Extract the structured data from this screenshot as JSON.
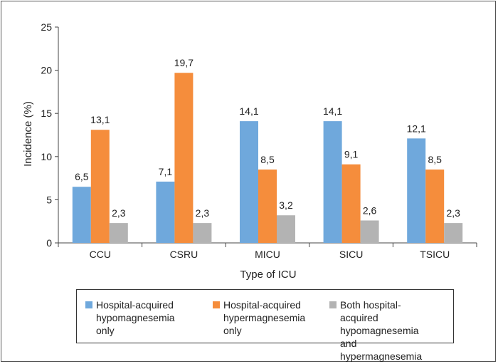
{
  "chart_data": {
    "type": "bar",
    "categories": [
      "CCU",
      "CSRU",
      "MICU",
      "SICU",
      "TSICU"
    ],
    "series": [
      {
        "name": "Hospital-acquired\nhypomagnesemia only",
        "color": "#6fa8dc",
        "values": [
          6.5,
          7.1,
          14.1,
          14.1,
          12.1
        ],
        "labels": [
          "6,5",
          "7,1",
          "14,1",
          "14,1",
          "12,1"
        ]
      },
      {
        "name": "Hospital-acquired\nhypermagnesemia only",
        "color": "#f58d3c",
        "values": [
          13.1,
          19.7,
          8.5,
          9.1,
          8.5
        ],
        "labels": [
          "13,1",
          "19,7",
          "8,5",
          "9,1",
          "8,5"
        ]
      },
      {
        "name": "Both hospital-acquired\nhypomagnesemia and\nhypermagnesemia",
        "color": "#b3b3b3",
        "values": [
          2.3,
          2.3,
          3.2,
          2.6,
          2.3
        ],
        "labels": [
          "2,3",
          "2,3",
          "3,2",
          "2,6",
          "2,3"
        ]
      }
    ],
    "xlabel": "Type of ICU",
    "ylabel": "Incidence (%)",
    "ylim": [
      0,
      25
    ],
    "yticks": [
      0,
      5,
      10,
      15,
      20,
      25
    ],
    "grid": false,
    "legend_position": "bottom"
  }
}
